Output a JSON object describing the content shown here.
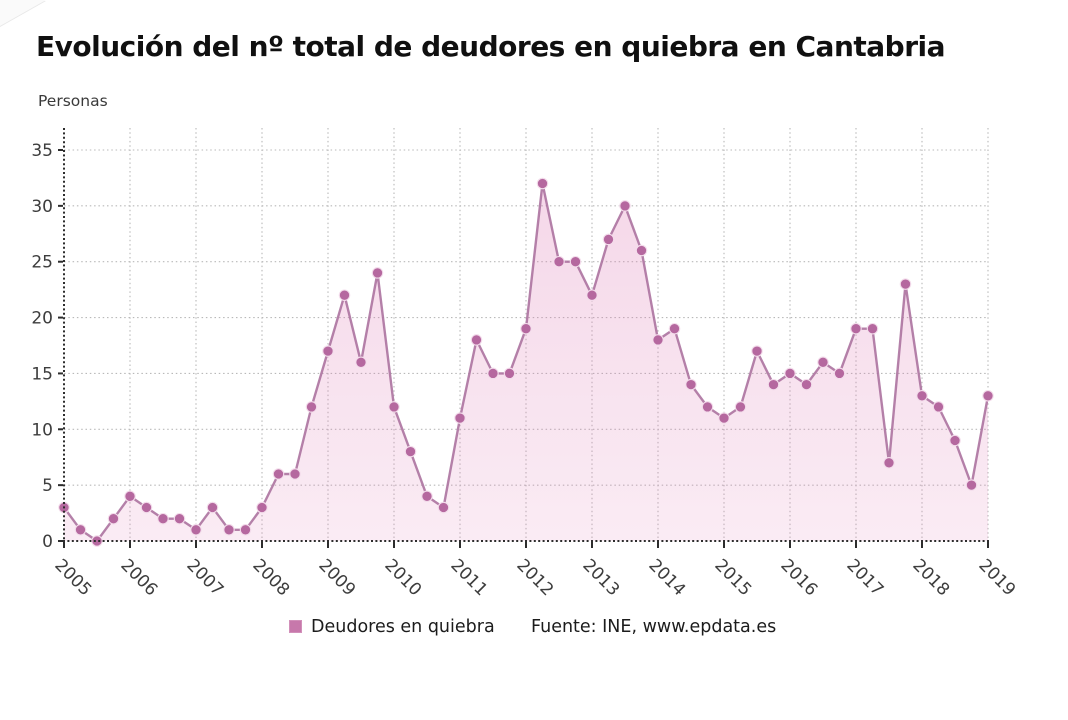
{
  "header": {
    "title": "Evolución del nº total de deudores en quiebra en Cantabria",
    "unit_label": "Personas"
  },
  "legend": {
    "series_label": "Deudores en quiebra",
    "source": "Fuente: INE, www.epdata.es",
    "swatch_color": "#c778ab"
  },
  "chart_data": {
    "type": "line",
    "title": "Evolución del nº total de deudores en quiebra en Cantabria",
    "ylabel": "Personas",
    "xlabel": "",
    "x_tick_labels": [
      "2005",
      "2006",
      "2007",
      "2008",
      "2009",
      "2010",
      "2011",
      "2012",
      "2013",
      "2014",
      "2015",
      "2016",
      "2017",
      "2018",
      "2019"
    ],
    "points_per_year": 4,
    "series": [
      {
        "name": "Deudores en quiebra",
        "values": [
          3,
          1,
          0,
          2,
          4,
          3,
          2,
          2,
          1,
          3,
          1,
          1,
          3,
          6,
          6,
          12,
          17,
          22,
          16,
          24,
          12,
          8,
          4,
          3,
          11,
          18,
          15,
          15,
          19,
          32,
          25,
          25,
          22,
          27,
          30,
          26,
          18,
          19,
          14,
          12,
          11,
          12,
          17,
          14,
          15,
          14,
          16,
          15,
          19,
          19,
          7,
          23,
          13,
          12,
          9,
          5,
          13
        ]
      }
    ],
    "ylim": [
      0,
      35
    ],
    "yticks": [
      0,
      5,
      10,
      15,
      20,
      25,
      30,
      35
    ],
    "grid": true,
    "legend_position": "bottom",
    "colors": {
      "line": "#aa6f9d",
      "marker": "#b5689f",
      "marker_edge": "#f3dceb",
      "area": "#de7cb5",
      "grid": "#b9b9b9",
      "axis": "#2d2d2d",
      "tick_text": "#3d3d3d"
    }
  }
}
